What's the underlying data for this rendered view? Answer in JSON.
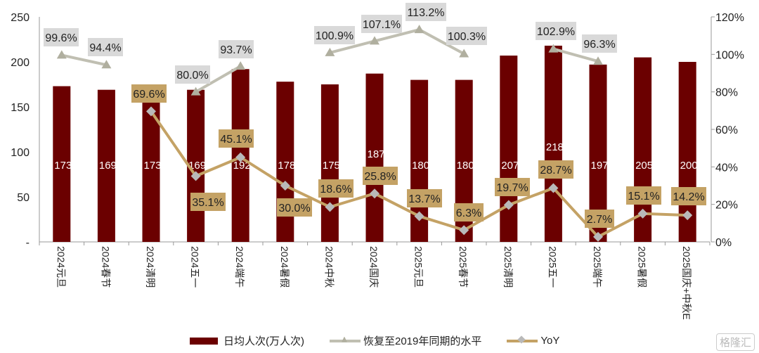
{
  "chart_data": {
    "type": "bar+line",
    "categories": [
      "2024元旦",
      "2024春节",
      "2024清明",
      "2024五一",
      "2024端午",
      "2024暑假",
      "2024中秋",
      "2024国庆",
      "2025元旦",
      "2025春节",
      "2025清明",
      "2025五一",
      "2025端午",
      "2025暑假",
      "2025国庆+中秋E"
    ],
    "series": [
      {
        "name": "日均人次(万人次)",
        "type": "bar",
        "axis": "left",
        "color": "#6b0000",
        "values": [
          173,
          169,
          173,
          169,
          192,
          178,
          175,
          187,
          180,
          180,
          207,
          218,
          197,
          205,
          200
        ]
      },
      {
        "name": "恢复至2019年同期的水平",
        "type": "line",
        "axis": "right",
        "color": "#c0bfb2",
        "marker": "triangle",
        "values": [
          99.6,
          94.4,
          null,
          80.0,
          93.7,
          null,
          100.9,
          107.1,
          113.2,
          100.3,
          null,
          102.9,
          96.3,
          null,
          null
        ]
      },
      {
        "name": "YoY",
        "type": "line",
        "axis": "right",
        "color": "#c4a265",
        "marker": "diamond",
        "values": [
          null,
          null,
          69.6,
          35.1,
          45.1,
          30.0,
          18.6,
          25.8,
          13.7,
          6.3,
          19.7,
          28.7,
          2.7,
          15.1,
          14.2
        ]
      }
    ],
    "left_axis": {
      "ticks": [
        "-",
        "50",
        "100",
        "150",
        "200",
        "250"
      ],
      "range": [
        0,
        250
      ]
    },
    "right_axis": {
      "ticks": [
        "0%",
        "20%",
        "40%",
        "60%",
        "80%",
        "100%",
        "120%"
      ],
      "range": [
        0,
        120
      ]
    },
    "legend_placement": "bottom",
    "grid": false
  },
  "watermark": "格隆汇"
}
